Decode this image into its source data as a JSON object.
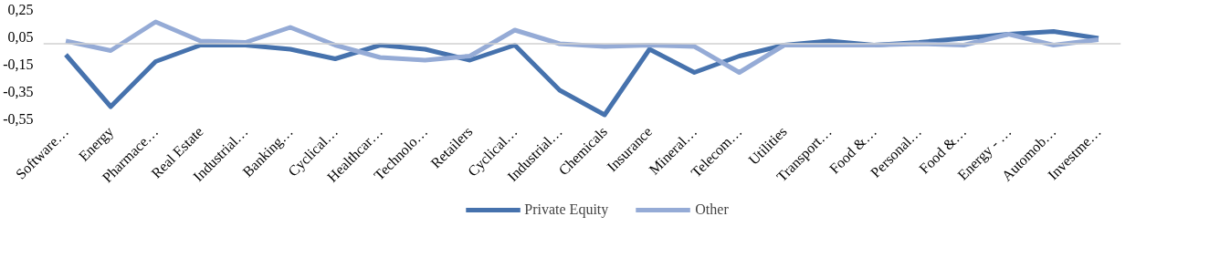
{
  "chart_data": {
    "type": "line",
    "categories": [
      "Software…",
      "Energy",
      "Pharmace…",
      "Real Estate",
      "Industrial…",
      "Banking…",
      "Cyclical…",
      "Healthcar…",
      "Technolo…",
      "Retailers",
      "Cyclical…",
      "Industrial…",
      "Chemicals",
      "Insurance",
      "Mineral…",
      "Telecom…",
      "Utilities",
      "Transport…",
      "Food &…",
      "Personal…",
      "Food &…",
      "Energy - …",
      "Automob…",
      "Investme…"
    ],
    "series": [
      {
        "name": "Private Equity",
        "color": "#4672ad",
        "values": [
          -0.08,
          -0.46,
          -0.13,
          -0.01,
          -0.01,
          -0.04,
          -0.11,
          -0.01,
          -0.04,
          -0.12,
          -0.01,
          -0.34,
          -0.52,
          -0.04,
          -0.21,
          -0.09,
          -0.01,
          0.02,
          -0.01,
          0.01,
          0.04,
          0.07,
          0.09,
          0.04
        ]
      },
      {
        "name": "Other",
        "color": "#95abd6",
        "values": [
          0.02,
          -0.05,
          0.16,
          0.02,
          0.01,
          0.12,
          -0.01,
          -0.1,
          -0.12,
          -0.09,
          0.1,
          0.0,
          -0.02,
          -0.01,
          -0.02,
          -0.21,
          -0.01,
          -0.01,
          -0.01,
          0.0,
          -0.01,
          0.07,
          -0.01,
          0.03
        ]
      }
    ],
    "ylim": [
      -0.55,
      0.25
    ],
    "yticks": [
      {
        "value": -0.55,
        "label": "-0,55"
      },
      {
        "value": -0.35,
        "label": "-0,35"
      },
      {
        "value": -0.15,
        "label": "-0,15"
      },
      {
        "value": 0.05,
        "label": "0,05"
      },
      {
        "value": 0.25,
        "label": "0,25"
      }
    ],
    "grid": false,
    "legend": "bottom",
    "marker": "none",
    "line_style": "solid"
  }
}
